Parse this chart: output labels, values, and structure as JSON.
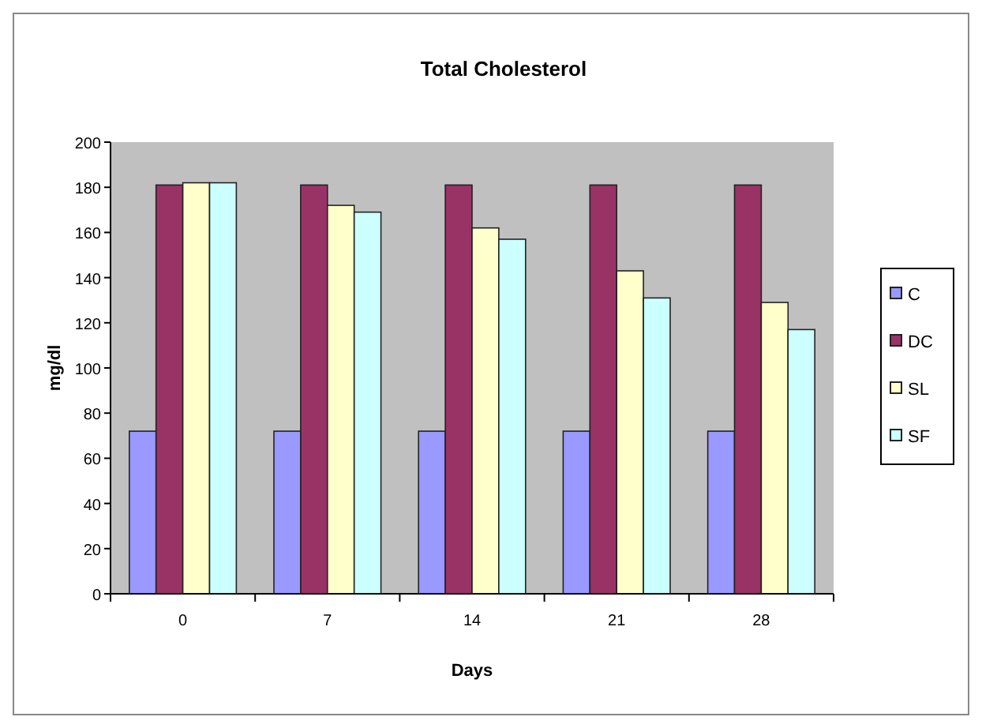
{
  "chart_data": {
    "type": "bar",
    "title": "Total Cholesterol",
    "xlabel": "Days",
    "ylabel": "mg/dl",
    "categories": [
      "0",
      "7",
      "14",
      "21",
      "28"
    ],
    "series": [
      {
        "name": "C",
        "color": "#9999ff",
        "values": [
          72,
          72,
          72,
          72,
          72
        ]
      },
      {
        "name": "DC",
        "color": "#993366",
        "values": [
          181,
          181,
          181,
          181,
          181
        ]
      },
      {
        "name": "SL",
        "color": "#ffffcc",
        "values": [
          182,
          172,
          162,
          143,
          129
        ]
      },
      {
        "name": "SF",
        "color": "#ccffff",
        "values": [
          182,
          169,
          157,
          131,
          117
        ]
      }
    ],
    "ylim": [
      0,
      200
    ],
    "yticks": [
      0,
      20,
      40,
      60,
      80,
      100,
      120,
      140,
      160,
      180,
      200
    ],
    "legend": "right",
    "grid": false
  }
}
